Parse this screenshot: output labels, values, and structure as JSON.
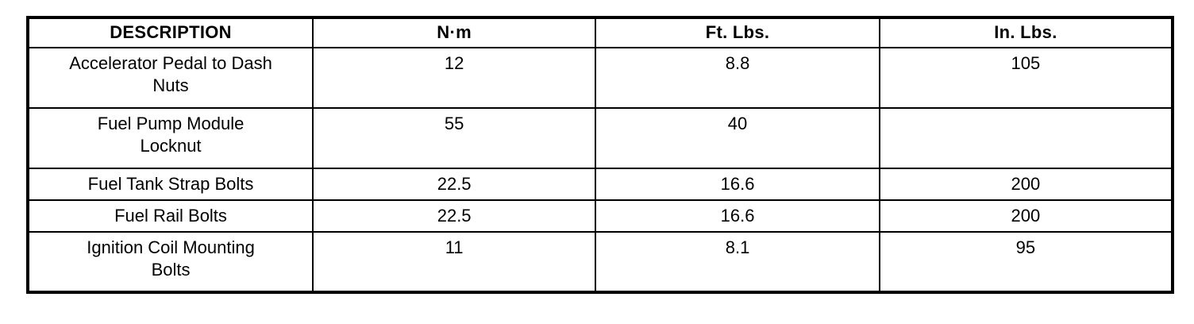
{
  "table": {
    "title": "torque-specifications",
    "columns": {
      "description": "DESCRIPTION",
      "nm": "N·m",
      "ftlbs": "Ft. Lbs.",
      "inlbs": "In. Lbs."
    },
    "rows": [
      {
        "description": "Accelerator Pedal to Dash\nNuts",
        "nm": "12",
        "ftlbs": "8.8",
        "inlbs": "105"
      },
      {
        "description": "Fuel Pump Module\nLocknut",
        "nm": "55",
        "ftlbs": "40",
        "inlbs": ""
      },
      {
        "description": "Fuel Tank Strap Bolts",
        "nm": "22.5",
        "ftlbs": "16.6",
        "inlbs": "200"
      },
      {
        "description": "Fuel Rail Bolts",
        "nm": "22.5",
        "ftlbs": "16.6",
        "inlbs": "200"
      },
      {
        "description": "Ignition Coil Mounting\nBolts",
        "nm": "11",
        "ftlbs": "8.1",
        "inlbs": "95"
      }
    ]
  }
}
